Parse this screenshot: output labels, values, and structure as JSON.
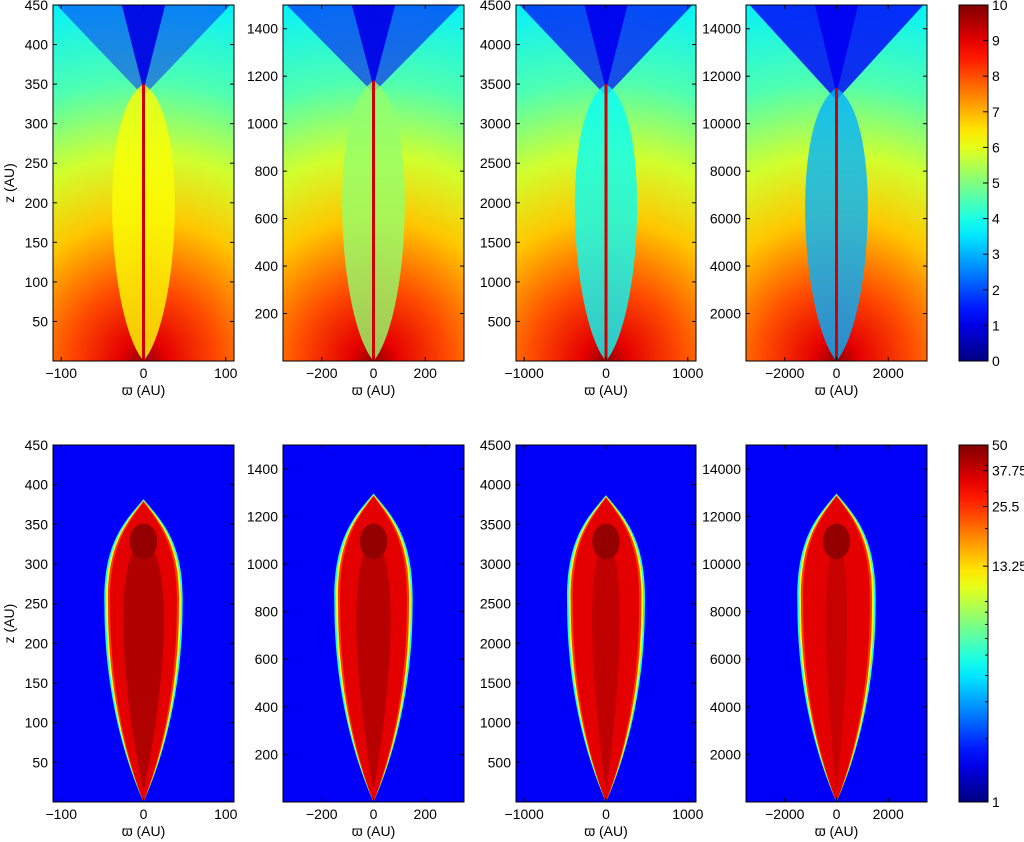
{
  "chart_data": {
    "type": "heatmap",
    "colormap": "jet",
    "rows": [
      {
        "colorbar": {
          "ticks": [
            "0",
            "1",
            "2",
            "3",
            "4",
            "5",
            "6",
            "7",
            "8",
            "9",
            "10"
          ],
          "range": [
            0,
            10
          ],
          "scale": "linear"
        },
        "panels": [
          {
            "xlabel": "ϖ (AU)",
            "ylabel": "z (AU)",
            "xlim": [
              -110,
              110
            ],
            "ylim": [
              0,
              450
            ],
            "jet_top": 350,
            "xticks": [
              {
                "v": -100,
                "t": "−100"
              },
              {
                "v": 0,
                "t": "0"
              },
              {
                "v": 100,
                "t": "100"
              }
            ],
            "yticks": [
              {
                "v": 50,
                "t": "50"
              },
              {
                "v": 100,
                "t": "100"
              },
              {
                "v": 150,
                "t": "150"
              },
              {
                "v": 200,
                "t": "200"
              },
              {
                "v": 250,
                "t": "250"
              },
              {
                "v": 300,
                "t": "300"
              },
              {
                "v": 350,
                "t": "350"
              },
              {
                "v": 400,
                "t": "400"
              },
              {
                "v": 450,
                "t": "450"
              }
            ]
          },
          {
            "xlabel": "ϖ (AU)",
            "ylabel": "",
            "xlim": [
              -350,
              350
            ],
            "ylim": [
              0,
              1500
            ],
            "jet_top": 1180,
            "xticks": [
              {
                "v": -200,
                "t": "−200"
              },
              {
                "v": 0,
                "t": "0"
              },
              {
                "v": 200,
                "t": "200"
              }
            ],
            "yticks": [
              {
                "v": 200,
                "t": "200"
              },
              {
                "v": 400,
                "t": "400"
              },
              {
                "v": 600,
                "t": "600"
              },
              {
                "v": 800,
                "t": "800"
              },
              {
                "v": 1000,
                "t": "1000"
              },
              {
                "v": 1200,
                "t": "1200"
              },
              {
                "v": 1400,
                "t": "1400"
              }
            ]
          },
          {
            "xlabel": "ϖ (AU)",
            "ylabel": "",
            "xlim": [
              -1100,
              1100
            ],
            "ylim": [
              0,
              4500
            ],
            "jet_top": 3500,
            "xticks": [
              {
                "v": -1000,
                "t": "−1000"
              },
              {
                "v": 0,
                "t": "0"
              },
              {
                "v": 1000,
                "t": "1000"
              }
            ],
            "yticks": [
              {
                "v": 500,
                "t": "500"
              },
              {
                "v": 1000,
                "t": "1000"
              },
              {
                "v": 1500,
                "t": "1500"
              },
              {
                "v": 2000,
                "t": "2000"
              },
              {
                "v": 2500,
                "t": "2500"
              },
              {
                "v": 3000,
                "t": "3000"
              },
              {
                "v": 3500,
                "t": "3500"
              },
              {
                "v": 4000,
                "t": "4000"
              },
              {
                "v": 4500,
                "t": "4500"
              }
            ]
          },
          {
            "xlabel": "ϖ (AU)",
            "ylabel": "",
            "xlim": [
              -3500,
              3500
            ],
            "ylim": [
              0,
              15000
            ],
            "jet_top": 11500,
            "xticks": [
              {
                "v": -2000,
                "t": "−2000"
              },
              {
                "v": 0,
                "t": "0"
              },
              {
                "v": 2000,
                "t": "2000"
              }
            ],
            "yticks": [
              {
                "v": 2000,
                "t": "2000"
              },
              {
                "v": 4000,
                "t": "4000"
              },
              {
                "v": 6000,
                "t": "6000"
              },
              {
                "v": 8000,
                "t": "8000"
              },
              {
                "v": 10000,
                "t": "10000"
              },
              {
                "v": 12000,
                "t": "12000"
              },
              {
                "v": 14000,
                "t": "14000"
              }
            ]
          }
        ]
      },
      {
        "colorbar": {
          "ticks": [
            "1",
            "13.25",
            "25.5",
            "37.75",
            "50"
          ],
          "range": [
            1,
            50
          ],
          "scale": "log"
        },
        "panels": [
          {
            "xlabel": "ϖ (AU)",
            "ylabel": "z (AU)",
            "xlim": [
              -110,
              110
            ],
            "ylim": [
              0,
              450
            ],
            "jet_top": 380,
            "xticks": [
              {
                "v": -100,
                "t": "−100"
              },
              {
                "v": 0,
                "t": "0"
              },
              {
                "v": 100,
                "t": "100"
              }
            ],
            "yticks": [
              {
                "v": 50,
                "t": "50"
              },
              {
                "v": 100,
                "t": "100"
              },
              {
                "v": 150,
                "t": "150"
              },
              {
                "v": 200,
                "t": "200"
              },
              {
                "v": 250,
                "t": "250"
              },
              {
                "v": 300,
                "t": "300"
              },
              {
                "v": 350,
                "t": "350"
              },
              {
                "v": 400,
                "t": "400"
              },
              {
                "v": 450,
                "t": "450"
              }
            ]
          },
          {
            "xlabel": "ϖ (AU)",
            "ylabel": "",
            "xlim": [
              -350,
              350
            ],
            "ylim": [
              0,
              1500
            ],
            "jet_top": 1290,
            "xticks": [
              {
                "v": -200,
                "t": "−200"
              },
              {
                "v": 0,
                "t": "0"
              },
              {
                "v": 200,
                "t": "200"
              }
            ],
            "yticks": [
              {
                "v": 200,
                "t": "200"
              },
              {
                "v": 400,
                "t": "400"
              },
              {
                "v": 600,
                "t": "600"
              },
              {
                "v": 800,
                "t": "800"
              },
              {
                "v": 1000,
                "t": "1000"
              },
              {
                "v": 1200,
                "t": "1200"
              },
              {
                "v": 1400,
                "t": "1400"
              }
            ]
          },
          {
            "xlabel": "ϖ (AU)",
            "ylabel": "",
            "xlim": [
              -1100,
              1100
            ],
            "ylim": [
              0,
              4500
            ],
            "jet_top": 3850,
            "xticks": [
              {
                "v": -1000,
                "t": "−1000"
              },
              {
                "v": 0,
                "t": "0"
              },
              {
                "v": 1000,
                "t": "1000"
              }
            ],
            "yticks": [
              {
                "v": 500,
                "t": "500"
              },
              {
                "v": 1000,
                "t": "1000"
              },
              {
                "v": 1500,
                "t": "1500"
              },
              {
                "v": 2000,
                "t": "2000"
              },
              {
                "v": 2500,
                "t": "2500"
              },
              {
                "v": 3000,
                "t": "3000"
              },
              {
                "v": 3500,
                "t": "3500"
              },
              {
                "v": 4000,
                "t": "4000"
              },
              {
                "v": 4500,
                "t": "4500"
              }
            ]
          },
          {
            "xlabel": "ϖ (AU)",
            "ylabel": "",
            "xlim": [
              -3500,
              3500
            ],
            "ylim": [
              0,
              15000
            ],
            "jet_top": 12900,
            "xticks": [
              {
                "v": -2000,
                "t": "−2000"
              },
              {
                "v": 0,
                "t": "0"
              },
              {
                "v": 2000,
                "t": "2000"
              }
            ],
            "yticks": [
              {
                "v": 2000,
                "t": "2000"
              },
              {
                "v": 4000,
                "t": "4000"
              },
              {
                "v": 6000,
                "t": "6000"
              },
              {
                "v": 8000,
                "t": "8000"
              },
              {
                "v": 10000,
                "t": "10000"
              },
              {
                "v": 12000,
                "t": "12000"
              },
              {
                "v": 14000,
                "t": "14000"
              }
            ]
          }
        ]
      }
    ]
  }
}
